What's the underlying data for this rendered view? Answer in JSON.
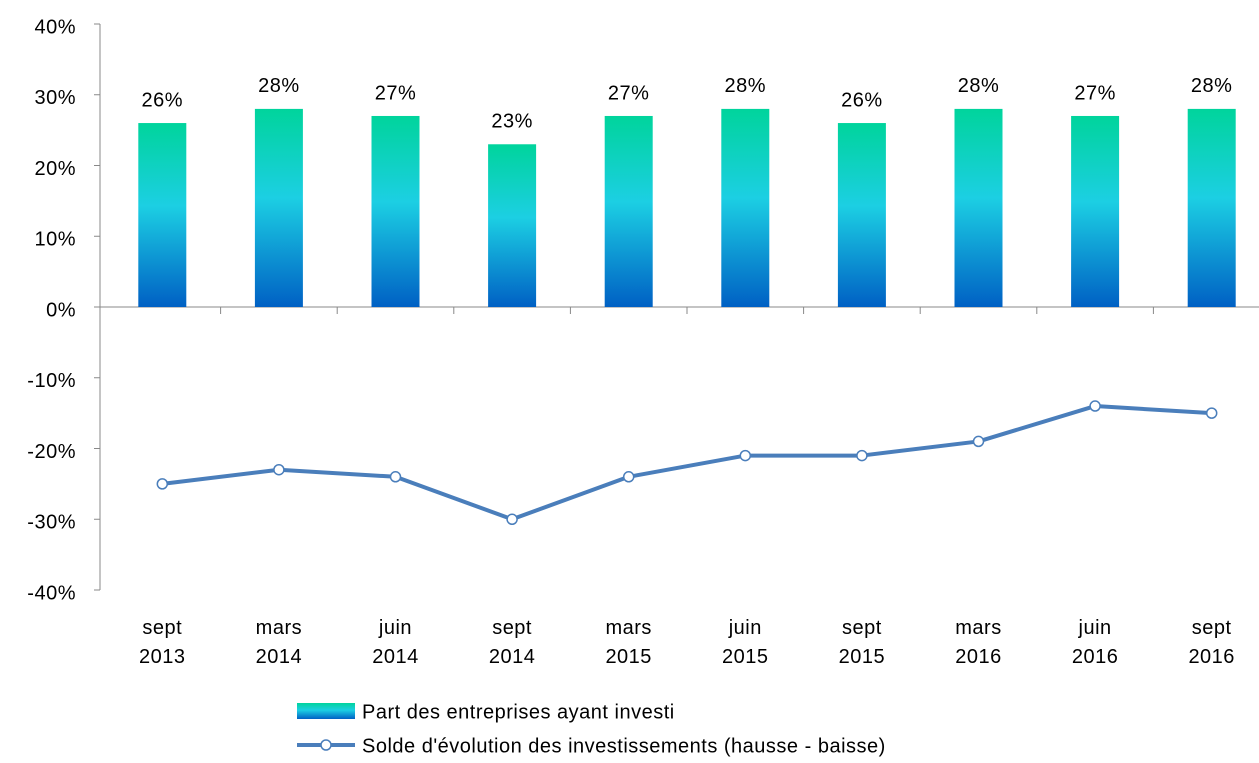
{
  "chart_data": {
    "type": "bar-line",
    "categories": [
      "sept\n2013",
      "mars\n2014",
      "juin\n2014",
      "sept\n2014",
      "mars\n2015",
      "juin\n2015",
      "sept\n2015",
      "mars\n2016",
      "juin\n2016",
      "sept\n2016"
    ],
    "series": [
      {
        "name": "Part des entreprises ayant investi",
        "type": "bar",
        "color": "#0fc8d8",
        "values": [
          26,
          28,
          27,
          23,
          27,
          28,
          26,
          28,
          27,
          28
        ],
        "value_labels": [
          "26%",
          "28%",
          "27%",
          "23%",
          "27%",
          "28%",
          "26%",
          "28%",
          "27%",
          "28%"
        ]
      },
      {
        "name": "Solde d'évolution des investissements (hausse - baisse)",
        "type": "line",
        "color": "#4a7ebb",
        "values": [
          -25,
          -23,
          -24,
          -30,
          -24,
          -21,
          -21,
          -19,
          -14,
          -15
        ]
      }
    ],
    "ylim": [
      -40,
      40
    ],
    "yticks": [
      {
        "value": -40,
        "label": "-40%"
      },
      {
        "value": -30,
        "label": "-30%"
      },
      {
        "value": -20,
        "label": "-20%"
      },
      {
        "value": -10,
        "label": "-10%"
      },
      {
        "value": 0,
        "label": "0%"
      },
      {
        "value": 10,
        "label": "10%"
      },
      {
        "value": 20,
        "label": "20%"
      },
      {
        "value": 30,
        "label": "30%"
      },
      {
        "value": 40,
        "label": "40%"
      }
    ],
    "grid": false,
    "legend": "bottom"
  }
}
